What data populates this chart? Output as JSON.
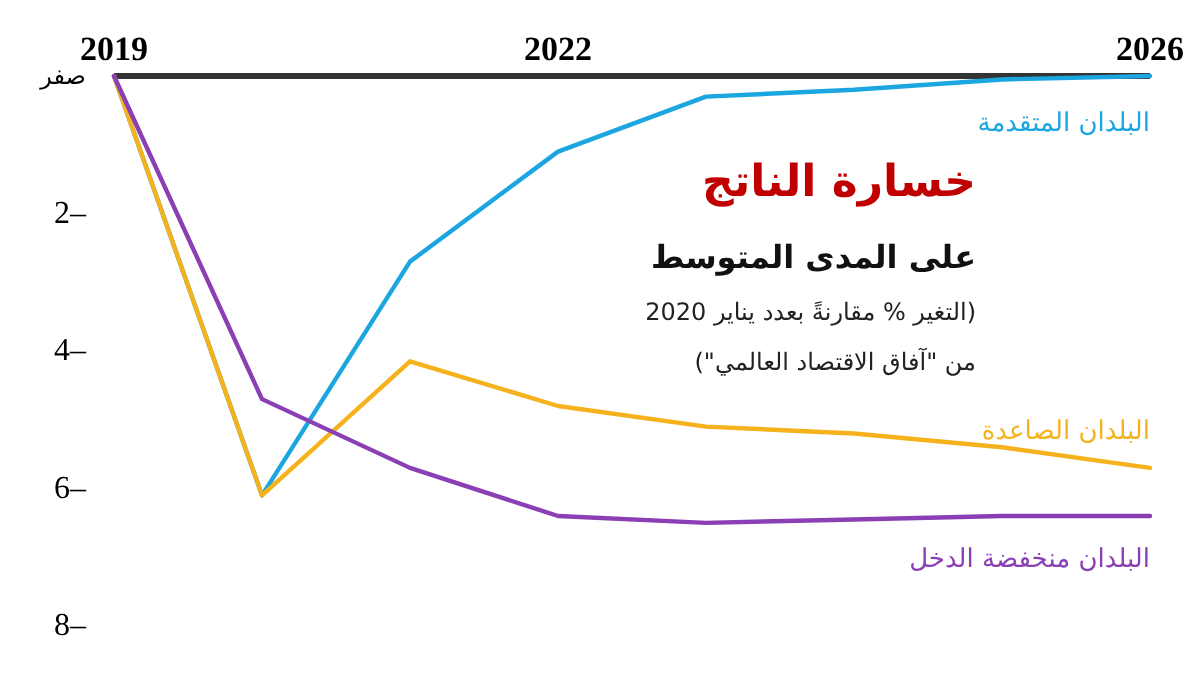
{
  "chart_data": {
    "type": "line",
    "title": "خسارة الناتج",
    "subtitle": "على المدى المتوسط",
    "annotations": [
      "(التغير % مقارنةً بعدد يناير 2020",
      "من \"آفاق الاقتصاد العالمي\")"
    ],
    "x": [
      2019,
      2020,
      2021,
      2022,
      2023,
      2024,
      2025,
      2026
    ],
    "series": [
      {
        "name": "البلدان المتقدمة",
        "color": "#1ba6e0",
        "values": [
          0,
          -6.1,
          -2.7,
          -1.1,
          -0.3,
          -0.2,
          -0.05,
          0
        ]
      },
      {
        "name": "البلدان الصاعدة",
        "color": "#f5b21c",
        "values": [
          0,
          -6.1,
          -4.15,
          -4.8,
          -5.1,
          -5.2,
          -5.4,
          -5.7
        ]
      },
      {
        "name": "البلدان منخفضة الدخل",
        "color": "#8a3fb5",
        "values": [
          0,
          -4.7,
          -5.7,
          -6.4,
          -6.5,
          -6.45,
          -6.4,
          -6.4
        ]
      }
    ],
    "xlim": [
      2019,
      2026
    ],
    "xticks": [
      2019,
      2022,
      2026
    ],
    "ylim": [
      -8,
      0
    ],
    "yticks": [
      {
        "value": 0,
        "label": "صفر"
      },
      {
        "value": -2,
        "label": "2–"
      },
      {
        "value": -4,
        "label": "4–"
      },
      {
        "value": -6,
        "label": "6–"
      },
      {
        "value": -8,
        "label": "8–"
      }
    ],
    "grid": false,
    "marker": "none",
    "line_style": "solid"
  }
}
